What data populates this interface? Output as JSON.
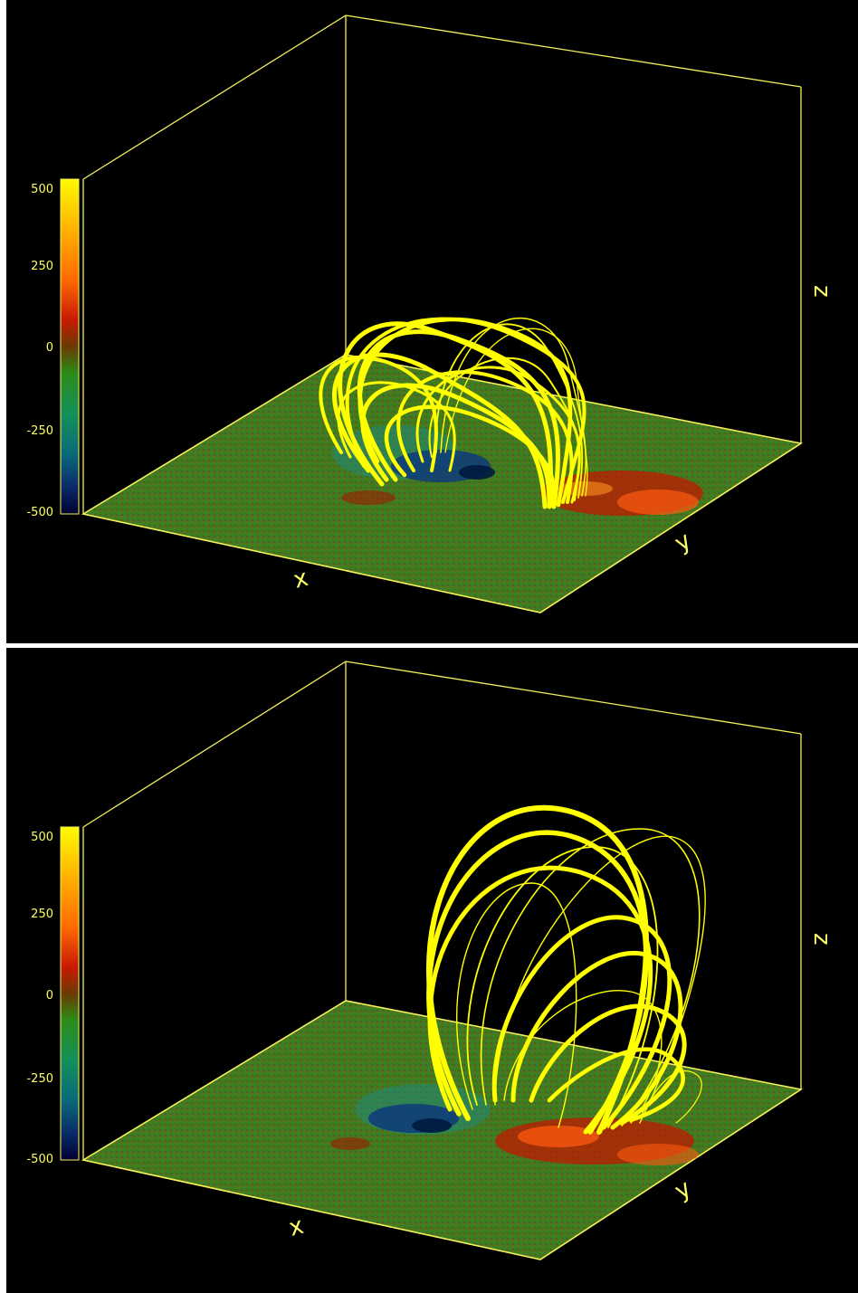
{
  "colors": {
    "background": "#000000",
    "frame": "#f5f05a",
    "field_line": "#ffff00",
    "label": "#ffff66",
    "separator": "#ffffff"
  },
  "colorbar": {
    "ticks": [
      "500",
      "250",
      "0",
      "-250",
      "-500"
    ],
    "stops": [
      "#fffb00",
      "#ffc000",
      "#ff6a00",
      "#c81a00",
      "#6a3a00",
      "#2c8c1a",
      "#14905a",
      "#0a6a7a",
      "#0a2a6a",
      "#000030"
    ]
  },
  "axes": {
    "x": "x",
    "y": "y",
    "z": "z"
  },
  "panels": [
    {
      "id": "top"
    },
    {
      "id": "bottom"
    }
  ]
}
